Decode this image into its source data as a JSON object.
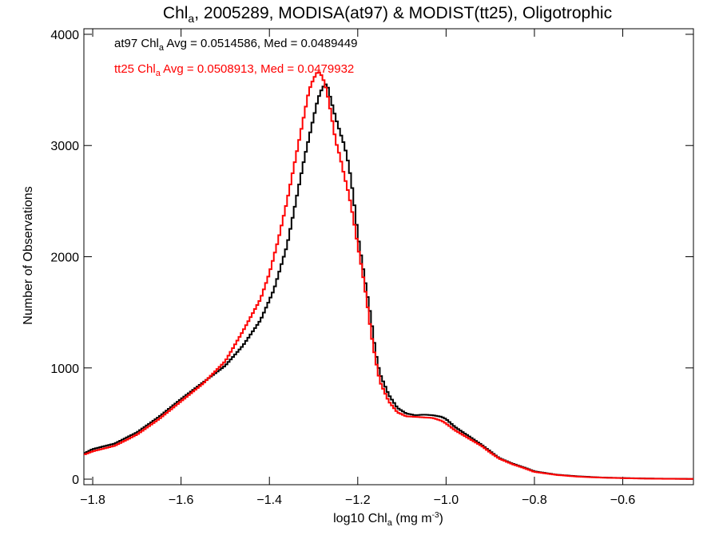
{
  "chart_data": {
    "type": "line",
    "title": {
      "prefix": "Chl",
      "sub": "a",
      "rest": ", 2005289, MODISA(at97) & MODIST(tt25), Oligotrophic"
    },
    "xlabel": {
      "prefix": "log10 Chl",
      "sub": "a",
      "rest": " (mg m",
      "sup": "-3",
      "end": ")"
    },
    "ylabel": "Number of Observations",
    "xlim": [
      -1.82,
      -0.44
    ],
    "ylim": [
      -50,
      4050
    ],
    "xticks": [
      {
        "value": -1.8,
        "label": "−1.8"
      },
      {
        "value": -1.6,
        "label": "−1.6"
      },
      {
        "value": -1.4,
        "label": "−1.4"
      },
      {
        "value": -1.2,
        "label": "−1.2"
      },
      {
        "value": -1.0,
        "label": "−1.0"
      },
      {
        "value": -0.8,
        "label": "−0.8"
      },
      {
        "value": -0.6,
        "label": "−0.6"
      }
    ],
    "yticks": [
      {
        "value": 0,
        "label": "0"
      },
      {
        "value": 1000,
        "label": "1000"
      },
      {
        "value": 2000,
        "label": "2000"
      },
      {
        "value": 3000,
        "label": "3000"
      },
      {
        "value": 4000,
        "label": "4000"
      }
    ],
    "grid": false,
    "legend": "top-left",
    "bin_width": 0.005,
    "annotations": [
      {
        "series": "at97",
        "prefix": "at97 Chl",
        "sub": "a",
        "rest": " Avg = 0.0514586, Med = 0.0489449",
        "color": "#000000"
      },
      {
        "series": "tt25",
        "prefix": "tt25 Chl",
        "sub": "a",
        "rest": " Avg = 0.0508913, Med = 0.0479932",
        "color": "#ff0000"
      }
    ],
    "series": [
      {
        "name": "at97",
        "color": "#000000",
        "points": [
          [
            -1.82,
            230
          ],
          [
            -1.8,
            270
          ],
          [
            -1.75,
            320
          ],
          [
            -1.7,
            420
          ],
          [
            -1.65,
            560
          ],
          [
            -1.6,
            720
          ],
          [
            -1.55,
            870
          ],
          [
            -1.5,
            1020
          ],
          [
            -1.46,
            1200
          ],
          [
            -1.42,
            1430
          ],
          [
            -1.39,
            1700
          ],
          [
            -1.36,
            2100
          ],
          [
            -1.34,
            2500
          ],
          [
            -1.32,
            2900
          ],
          [
            -1.3,
            3250
          ],
          [
            -1.29,
            3420
          ],
          [
            -1.28,
            3520
          ],
          [
            -1.27,
            3560
          ],
          [
            -1.26,
            3400
          ],
          [
            -1.25,
            3250
          ],
          [
            -1.24,
            3120
          ],
          [
            -1.23,
            3000
          ],
          [
            -1.22,
            2820
          ],
          [
            -1.21,
            2550
          ],
          [
            -1.2,
            2200
          ],
          [
            -1.19,
            1950
          ],
          [
            -1.18,
            1700
          ],
          [
            -1.17,
            1450
          ],
          [
            -1.16,
            1150
          ],
          [
            -1.15,
            950
          ],
          [
            -1.13,
            760
          ],
          [
            -1.11,
            640
          ],
          [
            -1.09,
            590
          ],
          [
            -1.07,
            575
          ],
          [
            -1.05,
            580
          ],
          [
            -1.03,
            575
          ],
          [
            -1.01,
            560
          ],
          [
            -1.0,
            540
          ],
          [
            -0.98,
            470
          ],
          [
            -0.95,
            390
          ],
          [
            -0.92,
            310
          ],
          [
            -0.9,
            250
          ],
          [
            -0.88,
            190
          ],
          [
            -0.85,
            140
          ],
          [
            -0.82,
            100
          ],
          [
            -0.8,
            70
          ],
          [
            -0.75,
            40
          ],
          [
            -0.7,
            25
          ],
          [
            -0.65,
            15
          ],
          [
            -0.6,
            10
          ],
          [
            -0.55,
            6
          ],
          [
            -0.5,
            4
          ],
          [
            -0.44,
            2
          ]
        ]
      },
      {
        "name": "tt25",
        "color": "#ff0000",
        "points": [
          [
            -1.82,
            220
          ],
          [
            -1.8,
            250
          ],
          [
            -1.75,
            300
          ],
          [
            -1.7,
            400
          ],
          [
            -1.65,
            540
          ],
          [
            -1.6,
            700
          ],
          [
            -1.55,
            860
          ],
          [
            -1.5,
            1060
          ],
          [
            -1.46,
            1330
          ],
          [
            -1.42,
            1620
          ],
          [
            -1.4,
            1850
          ],
          [
            -1.38,
            2150
          ],
          [
            -1.36,
            2500
          ],
          [
            -1.34,
            2900
          ],
          [
            -1.32,
            3300
          ],
          [
            -1.31,
            3500
          ],
          [
            -1.3,
            3600
          ],
          [
            -1.29,
            3670
          ],
          [
            -1.28,
            3620
          ],
          [
            -1.27,
            3490
          ],
          [
            -1.26,
            3280
          ],
          [
            -1.25,
            3040
          ],
          [
            -1.24,
            2900
          ],
          [
            -1.23,
            2720
          ],
          [
            -1.22,
            2560
          ],
          [
            -1.21,
            2350
          ],
          [
            -1.2,
            2100
          ],
          [
            -1.19,
            1880
          ],
          [
            -1.18,
            1620
          ],
          [
            -1.17,
            1320
          ],
          [
            -1.16,
            1080
          ],
          [
            -1.15,
            880
          ],
          [
            -1.13,
            700
          ],
          [
            -1.11,
            600
          ],
          [
            -1.09,
            565
          ],
          [
            -1.07,
            560
          ],
          [
            -1.05,
            555
          ],
          [
            -1.03,
            550
          ],
          [
            -1.01,
            525
          ],
          [
            -1.0,
            500
          ],
          [
            -0.98,
            440
          ],
          [
            -0.95,
            370
          ],
          [
            -0.92,
            300
          ],
          [
            -0.9,
            240
          ],
          [
            -0.88,
            185
          ],
          [
            -0.85,
            135
          ],
          [
            -0.82,
            95
          ],
          [
            -0.8,
            65
          ],
          [
            -0.75,
            38
          ],
          [
            -0.7,
            22
          ],
          [
            -0.65,
            14
          ],
          [
            -0.6,
            9
          ],
          [
            -0.55,
            5
          ],
          [
            -0.5,
            3
          ],
          [
            -0.44,
            2
          ]
        ]
      }
    ]
  }
}
